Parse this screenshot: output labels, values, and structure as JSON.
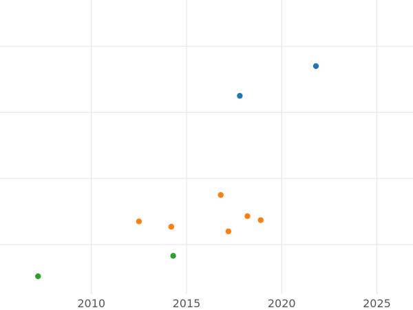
{
  "chart_data": {
    "type": "scatter",
    "title": "",
    "xlabel": "",
    "ylabel": "",
    "xlim": [
      2005.2,
      2026.9
    ],
    "ylim": [
      0,
      4.45
    ],
    "x_ticks": [
      2010,
      2015,
      2020,
      2025
    ],
    "x_tick_labels": [
      "2010",
      "2015",
      "2020",
      "2025"
    ],
    "y_gridlines": [
      0.75,
      1.75,
      2.75,
      3.75
    ],
    "grid": true,
    "legend": "none",
    "series": [
      {
        "color": "#1f77b4",
        "points": [
          {
            "x": 2017.8,
            "y": 3.0
          },
          {
            "x": 2021.8,
            "y": 3.45
          }
        ]
      },
      {
        "color": "#ff7f0e",
        "points": [
          {
            "x": 2012.5,
            "y": 1.1
          },
          {
            "x": 2014.2,
            "y": 1.02
          },
          {
            "x": 2016.8,
            "y": 1.5
          },
          {
            "x": 2017.2,
            "y": 0.95
          },
          {
            "x": 2018.2,
            "y": 1.18
          },
          {
            "x": 2018.9,
            "y": 1.12
          }
        ]
      },
      {
        "color": "#2ca02c",
        "points": [
          {
            "x": 2007.2,
            "y": 0.27
          },
          {
            "x": 2014.3,
            "y": 0.58
          }
        ]
      }
    ]
  }
}
